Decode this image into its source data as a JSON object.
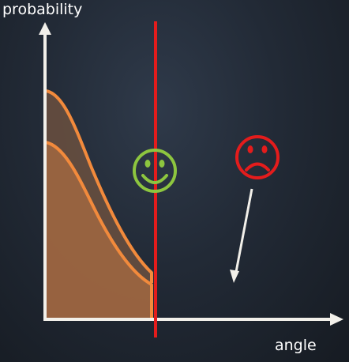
{
  "axes": {
    "y_label": "probability",
    "x_label": "angle"
  },
  "colors": {
    "axis": "#f2f0ea",
    "curve_stroke": "#f28a3c",
    "outer_fill": "#6b5040",
    "inner_fill": "#9a6440",
    "threshold_line": "#e41c1c",
    "happy_face": "#8dc63f",
    "sad_face": "#e41c1c",
    "arrow": "#f2f0ea"
  },
  "icons": {
    "happy": "smiley-face-icon",
    "sad": "frowning-face-icon"
  }
}
